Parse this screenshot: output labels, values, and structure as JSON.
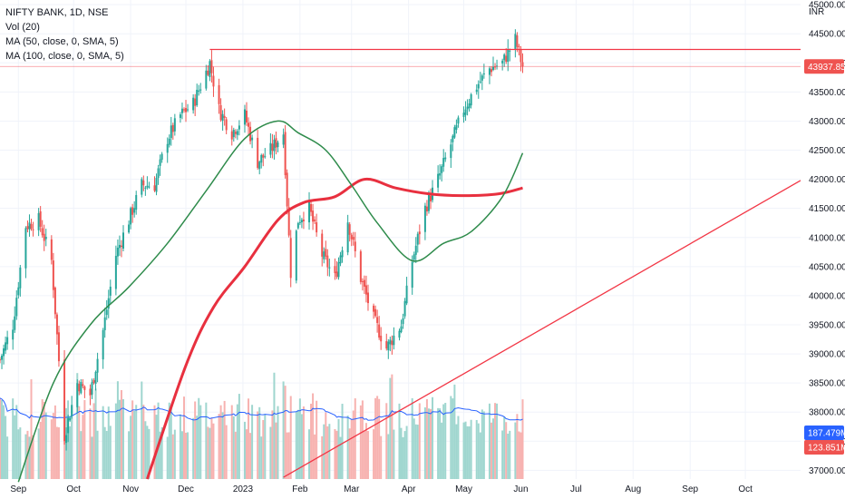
{
  "legend": {
    "symbol": "NIFTY BANK, 1D, NSE",
    "vol": "Vol (20)",
    "ma50": "MA (50, close, 0, SMA, 5)",
    "ma100": "MA (100, close, 0, SMA, 5)"
  },
  "currency": "INR",
  "colors": {
    "up": "#26a69a",
    "down": "#ef5350",
    "vol_up": "#9fd6cf",
    "vol_down": "#f7b2b0",
    "ma50": "#2e8b4b",
    "ma100": "#e8303f",
    "vol_ma": "#2962ff",
    "grid": "#f0f3fa",
    "trend": "#f23645",
    "price_line": "#f23645"
  },
  "chart_data": {
    "type": "candlestick",
    "x_tick_labels": [
      "Sep",
      "Oct",
      "Nov",
      "Dec",
      "2023",
      "Feb",
      "Mar",
      "Apr",
      "May",
      "Jun",
      "Jul",
      "Aug",
      "Sep",
      "Oct"
    ],
    "y_tick_labels": [
      "37000.00",
      "37500.00",
      "38000.00",
      "38500.00",
      "39000.00",
      "39500.00",
      "40000.00",
      "40500.00",
      "41000.00",
      "41500.00",
      "42000.00",
      "42500.00",
      "43000.00",
      "43500.00",
      "44000.00",
      "44500.00",
      "45000.00"
    ],
    "ylim": [
      36850,
      45080
    ],
    "x_months_index": [
      "2022-09",
      "2022-10",
      "2022-11",
      "2022-12",
      "2023-01",
      "2023-02",
      "2023-03",
      "2023-04",
      "2023-05",
      "2023-06",
      "2023-07",
      "2023-08",
      "2023-09",
      "2023-10"
    ],
    "close_anchors": [
      [
        "2022-08-22",
        38900
      ],
      [
        "2022-08-29",
        39500
      ],
      [
        "2022-09-05",
        41200
      ],
      [
        "2022-09-12",
        41300
      ],
      [
        "2022-09-19",
        40600
      ],
      [
        "2022-09-26",
        37600
      ],
      [
        "2022-10-03",
        38500
      ],
      [
        "2022-10-10",
        38300
      ],
      [
        "2022-10-17",
        39400
      ],
      [
        "2022-10-24",
        40700
      ],
      [
        "2022-10-31",
        41300
      ],
      [
        "2022-11-07",
        41900
      ],
      [
        "2022-11-14",
        41900
      ],
      [
        "2022-11-21",
        42700
      ],
      [
        "2022-11-28",
        43100
      ],
      [
        "2022-12-05",
        43300
      ],
      [
        "2022-12-14",
        44000
      ],
      [
        "2022-12-19",
        43200
      ],
      [
        "2022-12-26",
        42800
      ],
      [
        "2023-01-02",
        43100
      ],
      [
        "2023-01-09",
        42300
      ],
      [
        "2023-01-16",
        42500
      ],
      [
        "2023-01-23",
        42800
      ],
      [
        "2023-01-27",
        40400
      ],
      [
        "2023-01-31",
        41300
      ],
      [
        "2023-02-06",
        41500
      ],
      [
        "2023-02-13",
        40700
      ],
      [
        "2023-02-20",
        40300
      ],
      [
        "2023-02-27",
        41300
      ],
      [
        "2023-03-06",
        40300
      ],
      [
        "2023-03-13",
        39600
      ],
      [
        "2023-03-20",
        39100
      ],
      [
        "2023-03-28",
        39500
      ],
      [
        "2023-04-03",
        40600
      ],
      [
        "2023-04-10",
        41500
      ],
      [
        "2023-04-17",
        42000
      ],
      [
        "2023-04-24",
        42600
      ],
      [
        "2023-05-01",
        43200
      ],
      [
        "2023-05-08",
        43600
      ],
      [
        "2023-05-15",
        43900
      ],
      [
        "2023-05-22",
        44000
      ],
      [
        "2023-05-29",
        44400
      ],
      [
        "2023-06-02",
        43937.85
      ]
    ],
    "ma50_points": [
      [
        "2022-09-01",
        36800
      ],
      [
        "2022-09-20",
        38500
      ],
      [
        "2022-10-10",
        39500
      ],
      [
        "2022-10-31",
        40150
      ],
      [
        "2022-11-21",
        40900
      ],
      [
        "2022-12-12",
        41800
      ],
      [
        "2023-01-02",
        42700
      ],
      [
        "2023-01-20",
        43000
      ],
      [
        "2023-01-31",
        42800
      ],
      [
        "2023-02-15",
        42500
      ],
      [
        "2023-03-01",
        41900
      ],
      [
        "2023-03-15",
        41250
      ],
      [
        "2023-04-03",
        40600
      ],
      [
        "2023-04-20",
        40900
      ],
      [
        "2023-05-05",
        41100
      ],
      [
        "2023-05-22",
        41700
      ],
      [
        "2023-06-02",
        42450
      ]
    ],
    "ma100_points": [
      [
        "2022-11-10",
        36850
      ],
      [
        "2022-12-01",
        38800
      ],
      [
        "2022-12-16",
        39800
      ],
      [
        "2023-01-02",
        40500
      ],
      [
        "2023-01-20",
        41300
      ],
      [
        "2023-02-03",
        41600
      ],
      [
        "2023-02-20",
        41700
      ],
      [
        "2023-03-08",
        42000
      ],
      [
        "2023-03-25",
        41850
      ],
      [
        "2023-04-12",
        41750
      ],
      [
        "2023-05-01",
        41720
      ],
      [
        "2023-05-20",
        41750
      ],
      [
        "2023-06-02",
        41850
      ]
    ],
    "horizontal_level": 44230,
    "trendline": [
      [
        "2023-01-23",
        36880
      ],
      [
        "2023-10-31",
        41980
      ]
    ],
    "last_price": "43937.85",
    "volume_avg_label": "187.479M",
    "volume_label": "123.851M",
    "volume_scale_max_M": 250,
    "x_range": [
      "2022-08-22",
      "2023-10-31"
    ]
  }
}
